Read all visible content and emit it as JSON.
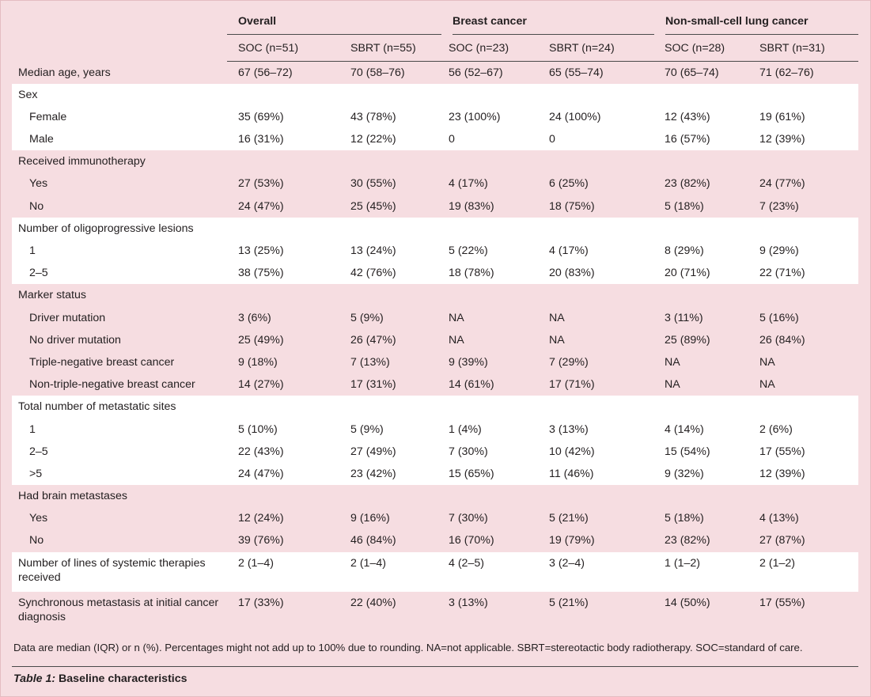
{
  "groups": [
    {
      "name": "Overall",
      "cols": [
        "SOC (n=51)",
        "SBRT (n=55)"
      ]
    },
    {
      "name": "Breast cancer",
      "cols": [
        "SOC (n=23)",
        "SBRT (n=24)"
      ]
    },
    {
      "name": "Non-small-cell lung cancer",
      "cols": [
        "SOC (n=28)",
        "SBRT (n=31)"
      ]
    }
  ],
  "rows": [
    {
      "label": "Median age, years",
      "vals": [
        "67 (56–72)",
        "70 (58–76)",
        "56 (52–67)",
        "65 (55–74)",
        "70 (65–74)",
        "71 (62–76)"
      ],
      "band": 0
    },
    {
      "label": "Sex",
      "vals": [
        "",
        "",
        "",
        "",
        "",
        ""
      ],
      "band": 1
    },
    {
      "label": "Female",
      "indent": true,
      "vals": [
        "35 (69%)",
        "43 (78%)",
        "23 (100%)",
        "24 (100%)",
        "12 (43%)",
        "19 (61%)"
      ],
      "band": 1
    },
    {
      "label": "Male",
      "indent": true,
      "vals": [
        "16 (31%)",
        "12 (22%)",
        "0",
        "0",
        "16 (57%)",
        "12 (39%)"
      ],
      "band": 1
    },
    {
      "label": "Received immunotherapy",
      "vals": [
        "",
        "",
        "",
        "",
        "",
        ""
      ],
      "band": 0
    },
    {
      "label": "Yes",
      "indent": true,
      "vals": [
        "27 (53%)",
        "30 (55%)",
        "4 (17%)",
        "6 (25%)",
        "23 (82%)",
        "24 (77%)"
      ],
      "band": 0
    },
    {
      "label": "No",
      "indent": true,
      "vals": [
        "24 (47%)",
        "25 (45%)",
        "19 (83%)",
        "18 (75%)",
        "5 (18%)",
        "7 (23%)"
      ],
      "band": 0
    },
    {
      "label": "Number of oligoprogressive lesions",
      "vals": [
        "",
        "",
        "",
        "",
        "",
        ""
      ],
      "band": 1
    },
    {
      "label": "1",
      "indent": true,
      "vals": [
        "13 (25%)",
        "13 (24%)",
        "5 (22%)",
        "4 (17%)",
        "8 (29%)",
        "9 (29%)"
      ],
      "band": 1
    },
    {
      "label": "2–5",
      "indent": true,
      "vals": [
        "38 (75%)",
        "42 (76%)",
        "18 (78%)",
        "20 (83%)",
        "20 (71%)",
        "22 (71%)"
      ],
      "band": 1
    },
    {
      "label": "Marker status",
      "vals": [
        "",
        "",
        "",
        "",
        "",
        ""
      ],
      "band": 0
    },
    {
      "label": "Driver mutation",
      "indent": true,
      "vals": [
        "3 (6%)",
        "5 (9%)",
        "NA",
        "NA",
        "3 (11%)",
        "5 (16%)"
      ],
      "band": 0
    },
    {
      "label": "No driver mutation",
      "indent": true,
      "vals": [
        "25 (49%)",
        "26 (47%)",
        "NA",
        "NA",
        "25 (89%)",
        "26 (84%)"
      ],
      "band": 0
    },
    {
      "label": "Triple-negative breast cancer",
      "indent": true,
      "vals": [
        "9 (18%)",
        "7 (13%)",
        "9 (39%)",
        "7 (29%)",
        "NA",
        "NA"
      ],
      "band": 0
    },
    {
      "label": "Non-triple-negative breast cancer",
      "indent": true,
      "vals": [
        "14 (27%)",
        "17 (31%)",
        "14 (61%)",
        "17 (71%)",
        "NA",
        "NA"
      ],
      "band": 0
    },
    {
      "label": "Total number of metastatic sites",
      "vals": [
        "",
        "",
        "",
        "",
        "",
        ""
      ],
      "band": 1
    },
    {
      "label": "1",
      "indent": true,
      "vals": [
        "5 (10%)",
        "5 (9%)",
        "1 (4%)",
        "3 (13%)",
        "4 (14%)",
        "2 (6%)"
      ],
      "band": 1
    },
    {
      "label": "2–5",
      "indent": true,
      "vals": [
        "22 (43%)",
        "27 (49%)",
        "7 (30%)",
        "10 (42%)",
        "15 (54%)",
        "17 (55%)"
      ],
      "band": 1
    },
    {
      "label": ">5",
      "indent": true,
      "vals": [
        "24 (47%)",
        "23 (42%)",
        "15 (65%)",
        "11 (46%)",
        "9 (32%)",
        "12 (39%)"
      ],
      "band": 1
    },
    {
      "label": "Had brain metastases",
      "vals": [
        "",
        "",
        "",
        "",
        "",
        ""
      ],
      "band": 0
    },
    {
      "label": "Yes",
      "indent": true,
      "vals": [
        "12 (24%)",
        "9 (16%)",
        "7 (30%)",
        "5 (21%)",
        "5 (18%)",
        "4 (13%)"
      ],
      "band": 0
    },
    {
      "label": "No",
      "indent": true,
      "vals": [
        "39 (76%)",
        "46 (84%)",
        "16 (70%)",
        "19 (79%)",
        "23 (82%)",
        "27 (87%)"
      ],
      "band": 0
    },
    {
      "label": "Number of lines of systemic therapies received",
      "tall": true,
      "vals": [
        "2 (1–4)",
        "2 (1–4)",
        "4 (2–5)",
        "3 (2–4)",
        "1 (1–2)",
        "2 (1–2)"
      ],
      "band": 1
    },
    {
      "label": "Synchronous metastasis at initial cancer diagnosis",
      "tall": true,
      "vals": [
        "17 (33%)",
        "22 (40%)",
        "3 (13%)",
        "5 (21%)",
        "14 (50%)",
        "17 (55%)"
      ],
      "band": 0
    }
  ],
  "footnote": "Data are median (IQR) or n (%). Percentages might not add up to 100% due to rounding. NA=not applicable. SBRT=stereotactic body radiotherapy. SOC=standard of care.",
  "caption": {
    "number": "Table 1:",
    "title": "Baseline characteristics"
  },
  "colors": {
    "band_pink": "#f6dde1",
    "band_white": "#ffffff",
    "text": "#231f20",
    "rule": "#4a4a4a"
  }
}
